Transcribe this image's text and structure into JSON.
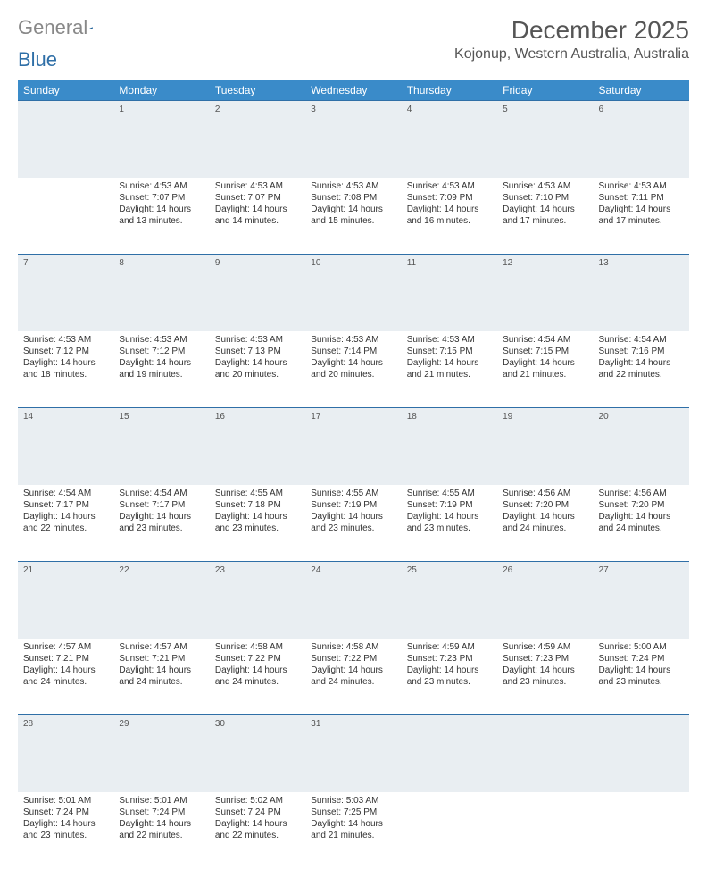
{
  "brand": {
    "part1": "General",
    "part2": "Blue"
  },
  "title": "December 2025",
  "location": "Kojonup, Western Australia, Australia",
  "colors": {
    "header_bg": "#3a8bc9",
    "header_text": "#ffffff",
    "daynum_bg": "#e9eef2",
    "rule": "#2f6fa7",
    "text": "#333333",
    "title_color": "#555555"
  },
  "day_headers": [
    "Sunday",
    "Monday",
    "Tuesday",
    "Wednesday",
    "Thursday",
    "Friday",
    "Saturday"
  ],
  "weeks": [
    {
      "nums": [
        "",
        "1",
        "2",
        "3",
        "4",
        "5",
        "6"
      ],
      "cells": [
        [
          "",
          "",
          "",
          ""
        ],
        [
          "Sunrise: 4:53 AM",
          "Sunset: 7:07 PM",
          "Daylight: 14 hours",
          "and 13 minutes."
        ],
        [
          "Sunrise: 4:53 AM",
          "Sunset: 7:07 PM",
          "Daylight: 14 hours",
          "and 14 minutes."
        ],
        [
          "Sunrise: 4:53 AM",
          "Sunset: 7:08 PM",
          "Daylight: 14 hours",
          "and 15 minutes."
        ],
        [
          "Sunrise: 4:53 AM",
          "Sunset: 7:09 PM",
          "Daylight: 14 hours",
          "and 16 minutes."
        ],
        [
          "Sunrise: 4:53 AM",
          "Sunset: 7:10 PM",
          "Daylight: 14 hours",
          "and 17 minutes."
        ],
        [
          "Sunrise: 4:53 AM",
          "Sunset: 7:11 PM",
          "Daylight: 14 hours",
          "and 17 minutes."
        ]
      ]
    },
    {
      "nums": [
        "7",
        "8",
        "9",
        "10",
        "11",
        "12",
        "13"
      ],
      "cells": [
        [
          "Sunrise: 4:53 AM",
          "Sunset: 7:12 PM",
          "Daylight: 14 hours",
          "and 18 minutes."
        ],
        [
          "Sunrise: 4:53 AM",
          "Sunset: 7:12 PM",
          "Daylight: 14 hours",
          "and 19 minutes."
        ],
        [
          "Sunrise: 4:53 AM",
          "Sunset: 7:13 PM",
          "Daylight: 14 hours",
          "and 20 minutes."
        ],
        [
          "Sunrise: 4:53 AM",
          "Sunset: 7:14 PM",
          "Daylight: 14 hours",
          "and 20 minutes."
        ],
        [
          "Sunrise: 4:53 AM",
          "Sunset: 7:15 PM",
          "Daylight: 14 hours",
          "and 21 minutes."
        ],
        [
          "Sunrise: 4:54 AM",
          "Sunset: 7:15 PM",
          "Daylight: 14 hours",
          "and 21 minutes."
        ],
        [
          "Sunrise: 4:54 AM",
          "Sunset: 7:16 PM",
          "Daylight: 14 hours",
          "and 22 minutes."
        ]
      ]
    },
    {
      "nums": [
        "14",
        "15",
        "16",
        "17",
        "18",
        "19",
        "20"
      ],
      "cells": [
        [
          "Sunrise: 4:54 AM",
          "Sunset: 7:17 PM",
          "Daylight: 14 hours",
          "and 22 minutes."
        ],
        [
          "Sunrise: 4:54 AM",
          "Sunset: 7:17 PM",
          "Daylight: 14 hours",
          "and 23 minutes."
        ],
        [
          "Sunrise: 4:55 AM",
          "Sunset: 7:18 PM",
          "Daylight: 14 hours",
          "and 23 minutes."
        ],
        [
          "Sunrise: 4:55 AM",
          "Sunset: 7:19 PM",
          "Daylight: 14 hours",
          "and 23 minutes."
        ],
        [
          "Sunrise: 4:55 AM",
          "Sunset: 7:19 PM",
          "Daylight: 14 hours",
          "and 23 minutes."
        ],
        [
          "Sunrise: 4:56 AM",
          "Sunset: 7:20 PM",
          "Daylight: 14 hours",
          "and 24 minutes."
        ],
        [
          "Sunrise: 4:56 AM",
          "Sunset: 7:20 PM",
          "Daylight: 14 hours",
          "and 24 minutes."
        ]
      ]
    },
    {
      "nums": [
        "21",
        "22",
        "23",
        "24",
        "25",
        "26",
        "27"
      ],
      "cells": [
        [
          "Sunrise: 4:57 AM",
          "Sunset: 7:21 PM",
          "Daylight: 14 hours",
          "and 24 minutes."
        ],
        [
          "Sunrise: 4:57 AM",
          "Sunset: 7:21 PM",
          "Daylight: 14 hours",
          "and 24 minutes."
        ],
        [
          "Sunrise: 4:58 AM",
          "Sunset: 7:22 PM",
          "Daylight: 14 hours",
          "and 24 minutes."
        ],
        [
          "Sunrise: 4:58 AM",
          "Sunset: 7:22 PM",
          "Daylight: 14 hours",
          "and 24 minutes."
        ],
        [
          "Sunrise: 4:59 AM",
          "Sunset: 7:23 PM",
          "Daylight: 14 hours",
          "and 23 minutes."
        ],
        [
          "Sunrise: 4:59 AM",
          "Sunset: 7:23 PM",
          "Daylight: 14 hours",
          "and 23 minutes."
        ],
        [
          "Sunrise: 5:00 AM",
          "Sunset: 7:24 PM",
          "Daylight: 14 hours",
          "and 23 minutes."
        ]
      ]
    },
    {
      "nums": [
        "28",
        "29",
        "30",
        "31",
        "",
        "",
        ""
      ],
      "cells": [
        [
          "Sunrise: 5:01 AM",
          "Sunset: 7:24 PM",
          "Daylight: 14 hours",
          "and 23 minutes."
        ],
        [
          "Sunrise: 5:01 AM",
          "Sunset: 7:24 PM",
          "Daylight: 14 hours",
          "and 22 minutes."
        ],
        [
          "Sunrise: 5:02 AM",
          "Sunset: 7:24 PM",
          "Daylight: 14 hours",
          "and 22 minutes."
        ],
        [
          "Sunrise: 5:03 AM",
          "Sunset: 7:25 PM",
          "Daylight: 14 hours",
          "and 21 minutes."
        ],
        [
          "",
          "",
          "",
          ""
        ],
        [
          "",
          "",
          "",
          ""
        ],
        [
          "",
          "",
          "",
          ""
        ]
      ]
    }
  ]
}
